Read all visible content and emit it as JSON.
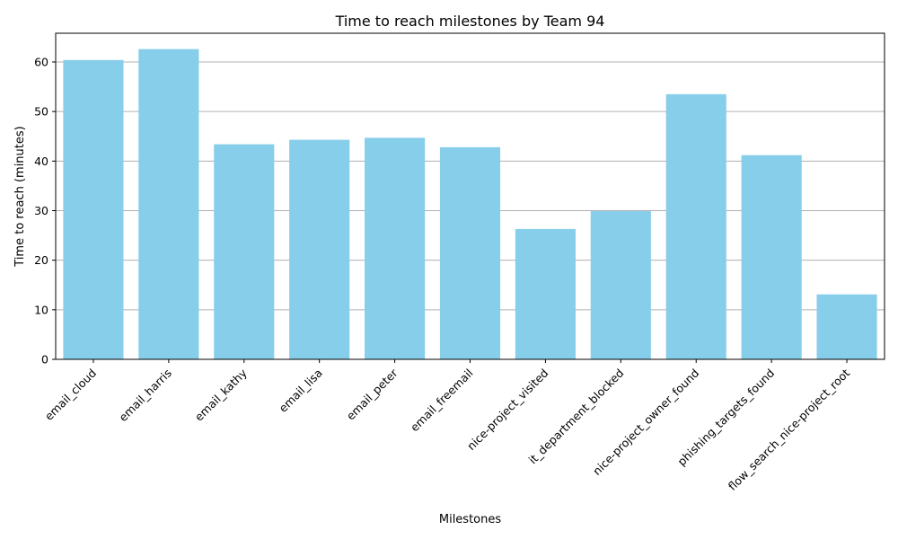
{
  "chart_data": {
    "type": "bar",
    "title": "Time to reach milestones by Team 94",
    "xlabel": "Milestones",
    "ylabel": "Time to reach (minutes)",
    "categories": [
      "email_cloud",
      "email_harris",
      "email_kathy",
      "email_lisa",
      "email_peter",
      "email_freemail",
      "nice-project_visited",
      "it_department_blocked",
      "nice-project_owner_found",
      "phishing_targets_found",
      "flow_search_nice-project_root"
    ],
    "values": [
      60.4,
      62.6,
      43.4,
      44.3,
      44.7,
      42.8,
      26.3,
      29.9,
      53.5,
      41.2,
      13.1
    ],
    "ylim": [
      0,
      65.8
    ],
    "yticks": [
      0,
      10,
      20,
      30,
      40,
      50,
      60
    ],
    "grid": "y-axis",
    "bar_color": "#87ceeb",
    "grid_color": "#b0b0b0",
    "legend": "none"
  }
}
